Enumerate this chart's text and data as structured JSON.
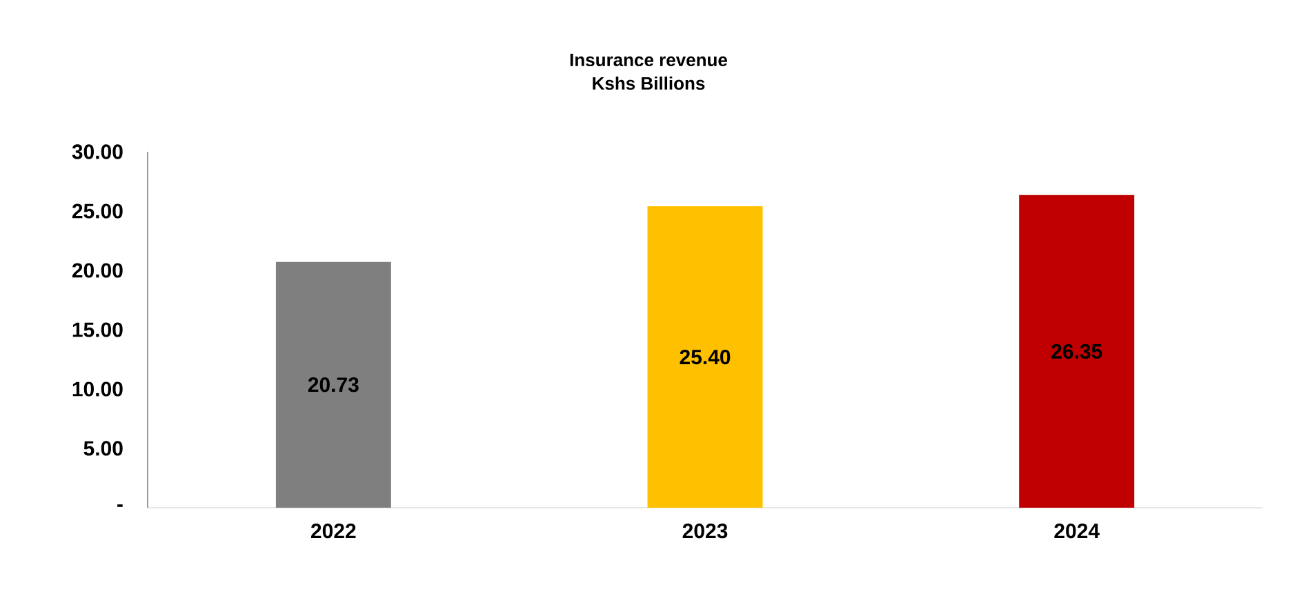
{
  "chart_data": {
    "type": "bar",
    "title": "Insurance revenue",
    "subtitle": "Kshs Billions",
    "categories": [
      "2022",
      "2023",
      "2024"
    ],
    "values": [
      20.73,
      25.4,
      26.35
    ],
    "colors": [
      "#7f7f7f",
      "#ffc000",
      "#c00000"
    ],
    "value_labels": [
      "20.73",
      "25.40",
      "26.35"
    ],
    "ylim": [
      0,
      30
    ],
    "yticks": [
      {
        "value": 0,
        "label": "-"
      },
      {
        "value": 5,
        "label": "5.00"
      },
      {
        "value": 10,
        "label": "10.00"
      },
      {
        "value": 15,
        "label": "15.00"
      },
      {
        "value": 20,
        "label": "20.00"
      },
      {
        "value": 25,
        "label": "25.00"
      },
      {
        "value": 30,
        "label": "30.00"
      }
    ]
  }
}
